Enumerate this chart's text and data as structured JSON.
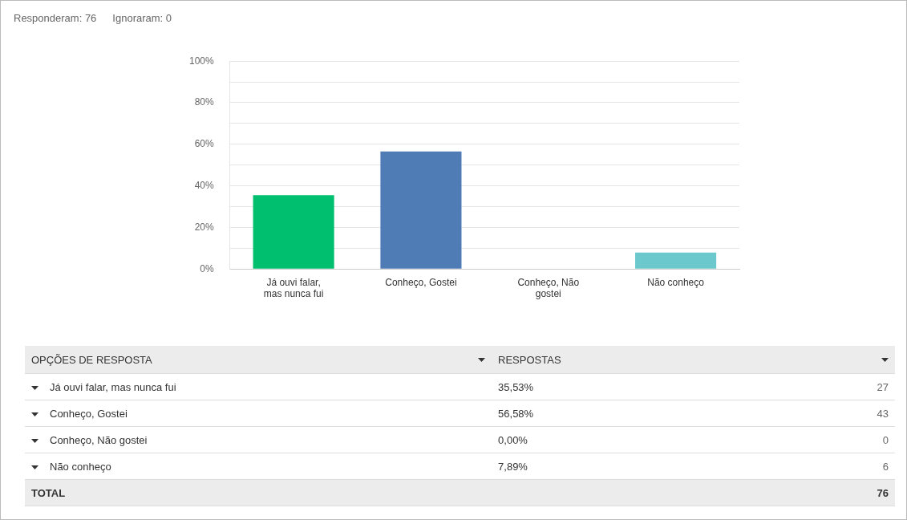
{
  "chart_data": {
    "type": "bar",
    "categories": [
      "Já ouvi falar, mas nunca fui",
      "Conheço, Gostei",
      "Conheço, Não gostei",
      "Não conheço"
    ],
    "values": [
      35.53,
      56.58,
      0,
      7.89
    ],
    "colors": [
      "#00bf6f",
      "#507cb6",
      "#f9be00",
      "#6bc8cd"
    ],
    "ylim": [
      0,
      100
    ],
    "yticks": [
      {
        "value": 0,
        "label": "0%"
      },
      {
        "value": 10,
        "label": null
      },
      {
        "value": 20,
        "label": "20%"
      },
      {
        "value": 30,
        "label": null
      },
      {
        "value": 40,
        "label": "40%"
      },
      {
        "value": 50,
        "label": null
      },
      {
        "value": 60,
        "label": "60%"
      },
      {
        "value": 70,
        "label": null
      },
      {
        "value": 80,
        "label": "80%"
      },
      {
        "value": 90,
        "label": null
      },
      {
        "value": 100,
        "label": "100%"
      }
    ],
    "grid": "y",
    "annotations": [
      "Responderam: 76",
      "Ignoraram: 0",
      "OPÇÕES DE RESPOSTA",
      "RESPOSTAS",
      "35,53%",
      "56,58%",
      "0,00%",
      "7,89%",
      "27",
      "43",
      "0",
      "6",
      "TOTAL",
      "76"
    ]
  }
}
